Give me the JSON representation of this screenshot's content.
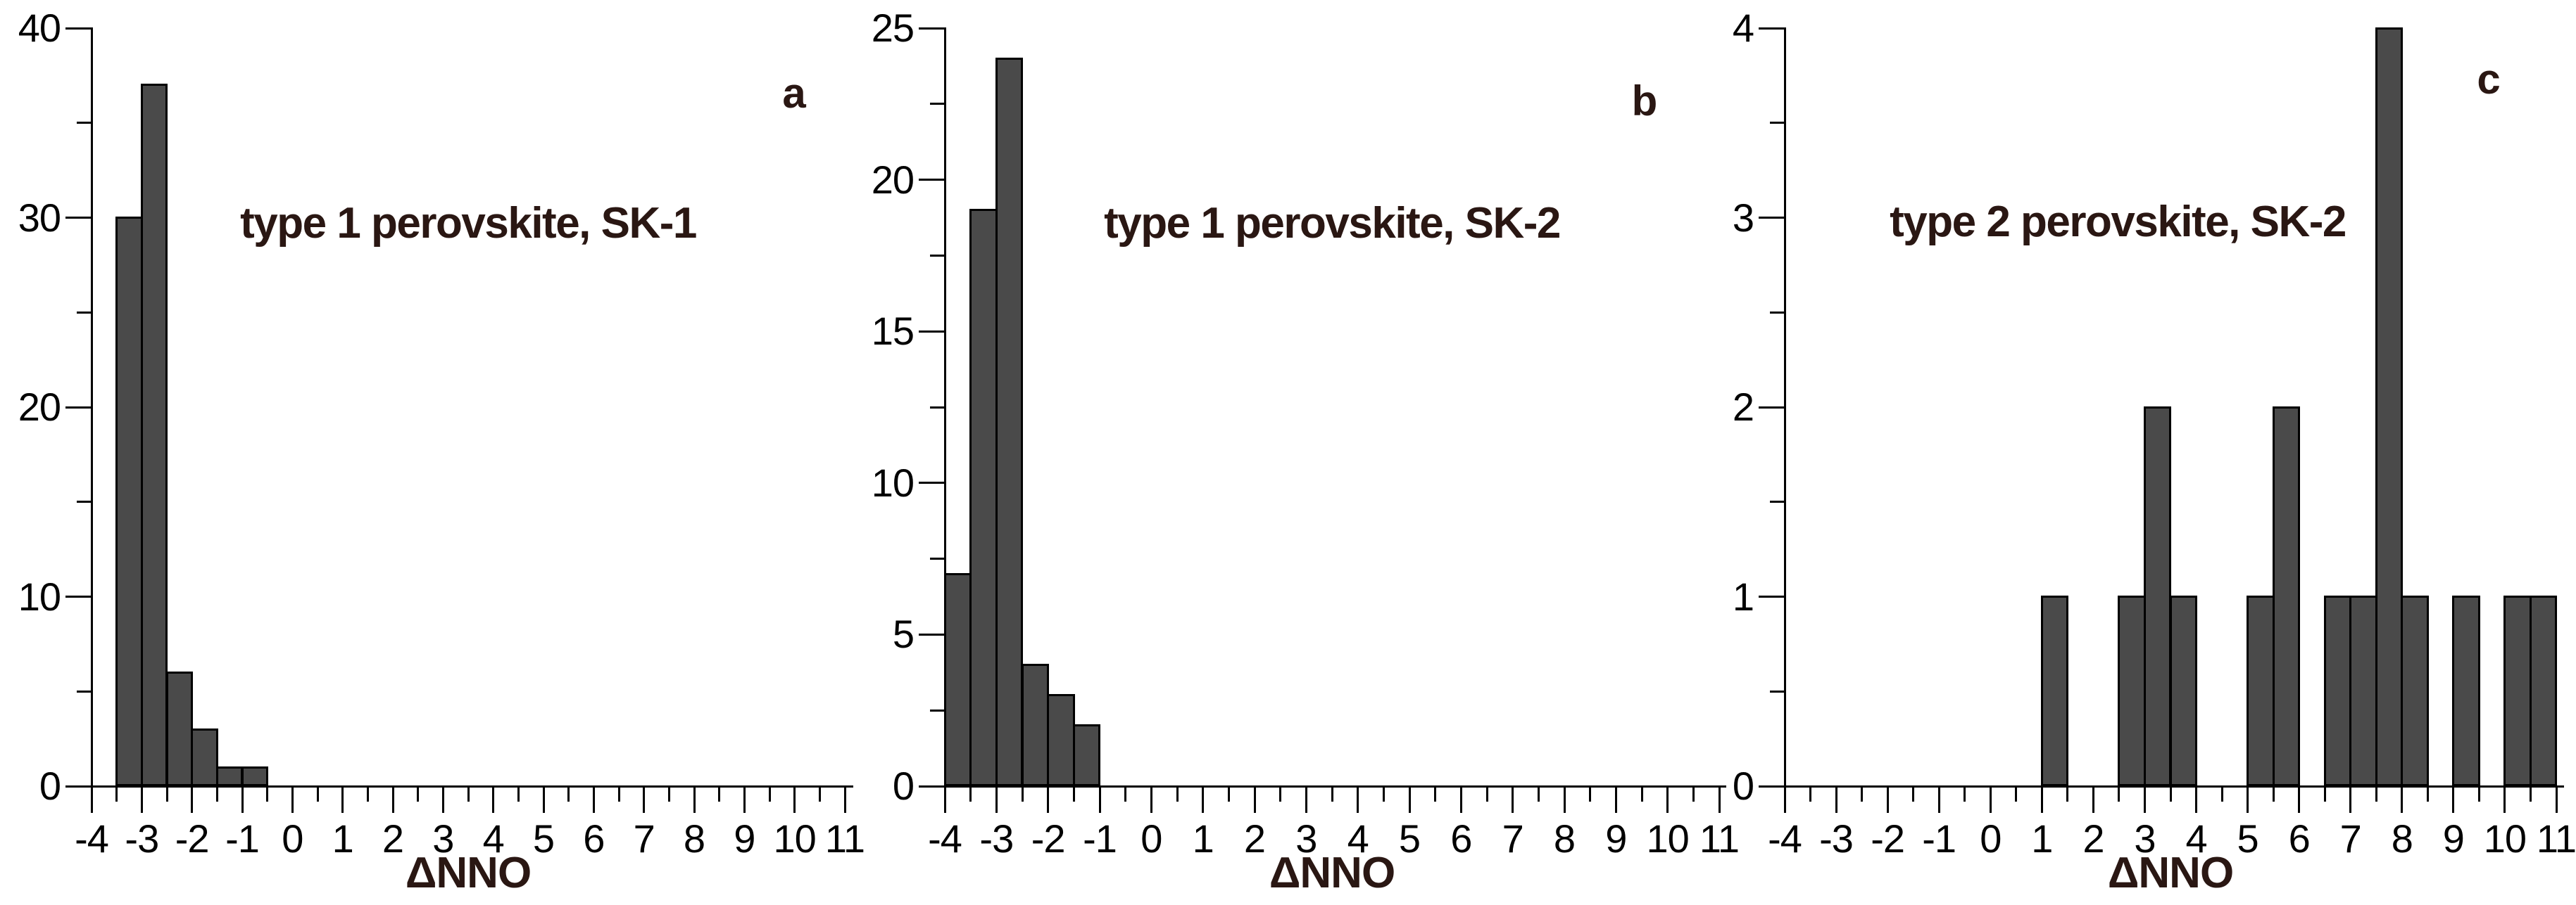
{
  "figure": {
    "background": "#ffffff",
    "bar_fill": "#4a4a4a",
    "bar_border": "#000000",
    "axis_color": "#000000",
    "tick_label_color": "#000000",
    "title_color": "#2a1713",
    "letter_color": "#2a1713"
  },
  "chart_data": [
    {
      "type": "bar",
      "panel_letter": "a",
      "title": "type 1 perovskite, SK-1",
      "xlabel": "ΔNNO",
      "xlim": [
        -4,
        11
      ],
      "ylim": [
        0,
        40
      ],
      "bin_width": 0.5,
      "grid": false,
      "x_ticks": [
        -4,
        -3,
        -2,
        -1,
        0,
        1,
        2,
        3,
        4,
        5,
        6,
        7,
        8,
        9,
        10,
        11
      ],
      "x_tick_labels": [
        "-4",
        "-3",
        "-2",
        "-1",
        "0",
        "1",
        "2",
        "3",
        "4",
        "5",
        "6",
        "7",
        "8",
        "9",
        "10",
        "11"
      ],
      "x_minor_step": 0.5,
      "y_ticks": [
        0,
        10,
        20,
        30,
        40
      ],
      "y_tick_labels": [
        "0",
        "10",
        "20",
        "30",
        "40"
      ],
      "y_minor_ticks": [
        5,
        15,
        25,
        35
      ],
      "bars": [
        {
          "x0": -3.5,
          "x1": -3.0,
          "count": 30
        },
        {
          "x0": -3.0,
          "x1": -2.5,
          "count": 37
        },
        {
          "x0": -2.5,
          "x1": -2.0,
          "count": 6
        },
        {
          "x0": -2.0,
          "x1": -1.5,
          "count": 3
        },
        {
          "x0": -1.5,
          "x1": -1.0,
          "count": 1
        },
        {
          "x0": -1.0,
          "x1": -0.5,
          "count": 1
        }
      ]
    },
    {
      "type": "bar",
      "panel_letter": "b",
      "title": "type 1 perovskite, SK-2",
      "xlabel": "ΔNNO",
      "xlim": [
        -4,
        11
      ],
      "ylim": [
        0,
        25
      ],
      "bin_width": 0.5,
      "grid": false,
      "x_ticks": [
        -4,
        -3,
        -2,
        -1,
        0,
        1,
        2,
        3,
        4,
        5,
        6,
        7,
        8,
        9,
        10,
        11
      ],
      "x_tick_labels": [
        "-4",
        "-3",
        "-2",
        "-1",
        "0",
        "1",
        "2",
        "3",
        "4",
        "5",
        "6",
        "7",
        "8",
        "9",
        "10",
        "11"
      ],
      "x_minor_step": 0.5,
      "y_ticks": [
        0,
        5,
        10,
        15,
        20,
        25
      ],
      "y_tick_labels": [
        "0",
        "5",
        "10",
        "15",
        "20",
        "25"
      ],
      "y_minor_ticks": [
        2.5,
        7.5,
        12.5,
        17.5,
        22.5
      ],
      "bars": [
        {
          "x0": -4.0,
          "x1": -3.5,
          "count": 7
        },
        {
          "x0": -3.5,
          "x1": -3.0,
          "count": 19
        },
        {
          "x0": -3.0,
          "x1": -2.5,
          "count": 24
        },
        {
          "x0": -2.5,
          "x1": -2.0,
          "count": 4
        },
        {
          "x0": -2.0,
          "x1": -1.5,
          "count": 3
        },
        {
          "x0": -1.5,
          "x1": -1.0,
          "count": 2
        }
      ]
    },
    {
      "type": "bar",
      "panel_letter": "c",
      "title": "type 2 perovskite, SK-2",
      "xlabel": "ΔNNO",
      "xlim": [
        -4,
        11
      ],
      "ylim": [
        0,
        4
      ],
      "bin_width": 0.5,
      "grid": false,
      "x_ticks": [
        -4,
        -3,
        -2,
        -1,
        0,
        1,
        2,
        3,
        4,
        5,
        6,
        7,
        8,
        9,
        10,
        11
      ],
      "x_tick_labels": [
        "-4",
        "-3",
        "-2",
        "-1",
        "0",
        "1",
        "2",
        "3",
        "4",
        "5",
        "6",
        "7",
        "8",
        "9",
        "10",
        "11"
      ],
      "x_minor_step": 0.5,
      "y_ticks": [
        0,
        1,
        2,
        3,
        4
      ],
      "y_tick_labels": [
        "0",
        "1",
        "2",
        "3",
        "4"
      ],
      "y_minor_ticks": [
        0.5,
        1.5,
        2.5,
        3.5
      ],
      "bars": [
        {
          "x0": 1.0,
          "x1": 1.5,
          "count": 1
        },
        {
          "x0": 2.5,
          "x1": 3.0,
          "count": 1
        },
        {
          "x0": 3.0,
          "x1": 3.5,
          "count": 2
        },
        {
          "x0": 3.5,
          "x1": 4.0,
          "count": 1
        },
        {
          "x0": 5.0,
          "x1": 5.5,
          "count": 1
        },
        {
          "x0": 5.5,
          "x1": 6.0,
          "count": 2
        },
        {
          "x0": 6.5,
          "x1": 7.0,
          "count": 1
        },
        {
          "x0": 7.0,
          "x1": 7.5,
          "count": 1
        },
        {
          "x0": 7.5,
          "x1": 8.0,
          "count": 4
        },
        {
          "x0": 8.0,
          "x1": 8.5,
          "count": 1
        },
        {
          "x0": 9.0,
          "x1": 9.5,
          "count": 1
        },
        {
          "x0": 10.0,
          "x1": 10.5,
          "count": 1
        },
        {
          "x0": 10.5,
          "x1": 11.0,
          "count": 1
        }
      ]
    }
  ]
}
